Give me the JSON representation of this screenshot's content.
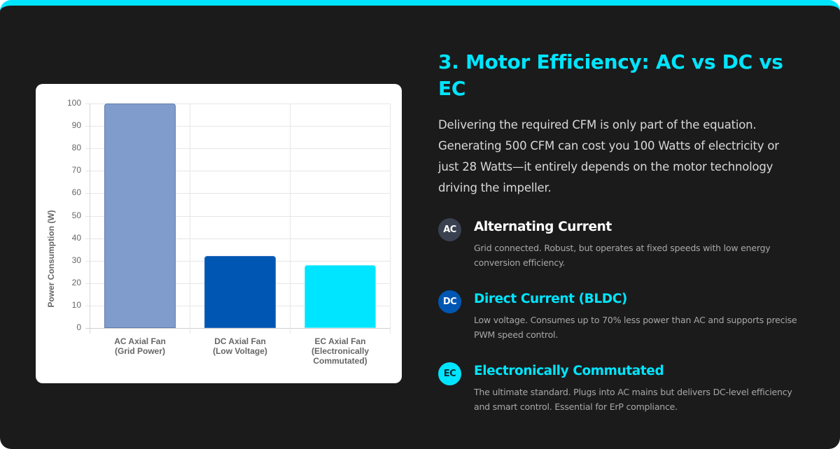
{
  "section": {
    "title": "3. Motor Efficiency: AC vs DC vs EC",
    "intro": "Delivering the required CFM is only part of the equation. Generating 500 CFM can cost you 100 Watts of electricity or just 28 Watts—it entirely depends on the motor technology driving the impeller."
  },
  "colors": {
    "accent": "#00e5ff",
    "background": "#1b1b1b",
    "ac": "#7f9ccc",
    "dc": "#0057b3",
    "ec": "#00e5ff",
    "ac_badge": "#3a4150"
  },
  "motors": [
    {
      "badge": "AC",
      "title": "Alternating Current",
      "description": "Grid connected. Robust, but operates at fixed speeds with low energy conversion efficiency."
    },
    {
      "badge": "DC",
      "title": "Direct Current (BLDC)",
      "description": "Low voltage. Consumes up to 70% less power than AC and supports precise PWM speed control."
    },
    {
      "badge": "EC",
      "title": "Electronically Commutated",
      "description": "The ultimate standard. Plugs into AC mains but delivers DC-level efficiency and smart control. Essential for ErP compliance."
    }
  ],
  "chart_data": {
    "type": "bar",
    "title": "",
    "categories": [
      "AC Axial Fan (Grid Power)",
      "DC Axial Fan (Low Voltage)",
      "EC Axial Fan (Electronically Commutated)"
    ],
    "category_lines": [
      [
        "AC Axial Fan",
        "(Grid Power)"
      ],
      [
        "DC Axial Fan",
        "(Low Voltage)"
      ],
      [
        "EC Axial Fan",
        "(Electronically",
        "Commutated)"
      ]
    ],
    "values": [
      100,
      32,
      28
    ],
    "bar_colors": [
      "#7f9ccc",
      "#0057b3",
      "#00e5ff"
    ],
    "xlabel": "",
    "ylabel": "Power Consumption (W)",
    "ylim": [
      0,
      100
    ],
    "yticks": [
      0,
      10,
      20,
      30,
      40,
      50,
      60,
      70,
      80,
      90,
      100
    ],
    "grid": true,
    "legend": "none"
  }
}
